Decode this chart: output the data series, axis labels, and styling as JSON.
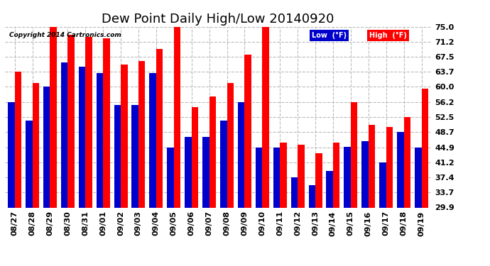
{
  "title": "Dew Point Daily High/Low 20140920",
  "copyright": "Copyright 2014 Cartronics.com",
  "dates": [
    "08/27",
    "08/28",
    "08/29",
    "08/30",
    "08/31",
    "09/01",
    "09/02",
    "09/03",
    "09/04",
    "09/05",
    "09/06",
    "09/07",
    "09/08",
    "09/09",
    "09/10",
    "09/11",
    "09/12",
    "09/13",
    "09/14",
    "09/15",
    "09/16",
    "09/17",
    "09/18",
    "09/19"
  ],
  "high": [
    63.7,
    61.0,
    75.0,
    73.0,
    72.5,
    72.0,
    65.5,
    66.5,
    69.5,
    75.0,
    55.0,
    57.5,
    61.0,
    68.0,
    75.0,
    46.0,
    45.5,
    43.5,
    46.0,
    56.2,
    50.5,
    50.0,
    52.5,
    59.5
  ],
  "low": [
    56.2,
    51.5,
    60.0,
    66.0,
    65.0,
    63.5,
    55.5,
    55.5,
    63.5,
    44.9,
    47.5,
    47.5,
    51.5,
    56.2,
    44.9,
    44.9,
    37.4,
    35.5,
    39.0,
    45.0,
    46.5,
    41.2,
    48.7,
    44.9
  ],
  "ylim_min": 29.9,
  "ylim_max": 75.0,
  "yticks": [
    29.9,
    33.7,
    37.4,
    41.2,
    44.9,
    48.7,
    52.5,
    56.2,
    60.0,
    63.7,
    67.5,
    71.2,
    75.0
  ],
  "high_color": "#ff0000",
  "low_color": "#0000cc",
  "bg_color": "#ffffff",
  "grid_color": "#bbbbbb",
  "title_fontsize": 13,
  "tick_fontsize": 8,
  "legend_high_label": "High  (°F)",
  "legend_low_label": "Low  (°F)"
}
